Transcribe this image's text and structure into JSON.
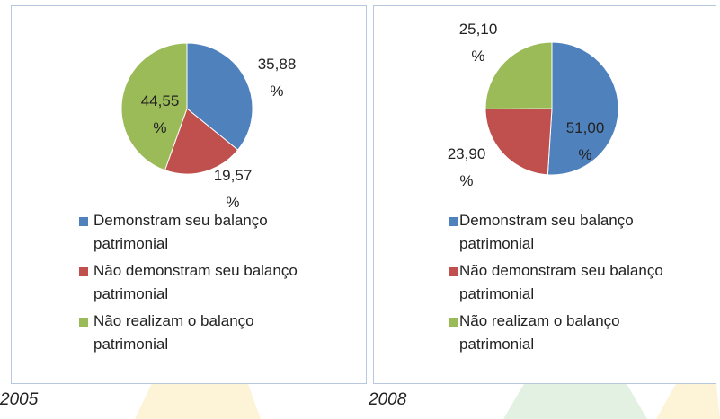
{
  "chart_data": [
    {
      "type": "pie",
      "title": "2005",
      "categories": [
        "Demonstram seu balanço patrimonial",
        "Não demonstram seu balanço patrimonial",
        "Não realizam o balanço patrimonial"
      ],
      "values": [
        35.88,
        19.57,
        44.55
      ],
      "value_labels": [
        "35,88 %",
        "19,57 %",
        "44,55 %"
      ],
      "colors": [
        "#4f81bd",
        "#c0504d",
        "#9bbb59"
      ],
      "legend": "bottom"
    },
    {
      "type": "pie",
      "title": "2008",
      "categories": [
        "Demonstram seu balanço patrimonial",
        "Não demonstram seu balanço patrimonial",
        "Não realizam o balanço patrimonial"
      ],
      "values": [
        51.0,
        23.9,
        25.1
      ],
      "value_labels": [
        "51,00 %",
        "23,90 %",
        "25,10 %"
      ],
      "colors": [
        "#4f81bd",
        "#c0504d",
        "#9bbb59"
      ],
      "legend": "bottom"
    }
  ]
}
